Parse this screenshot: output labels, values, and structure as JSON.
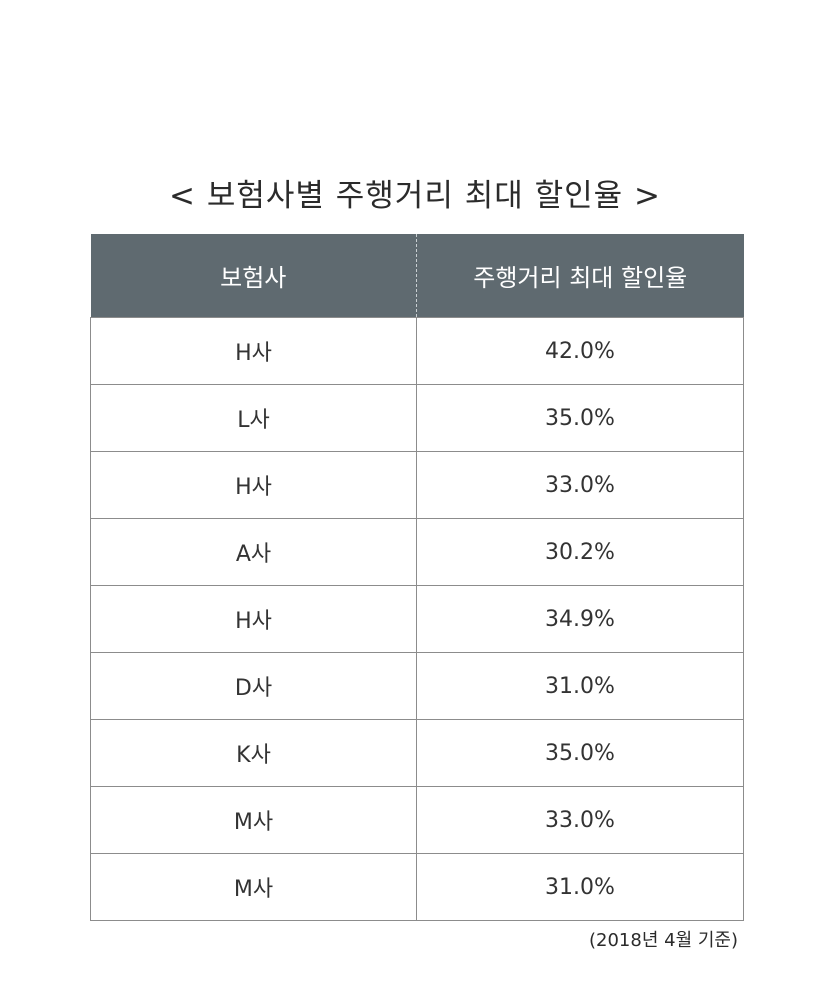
{
  "title": "< 보험사별 주행거리 최대 할인율 >",
  "table": {
    "headers": [
      "보험사",
      "주행거리 최대 할인율"
    ],
    "rows": [
      {
        "company": "H사",
        "rate": "42.0%"
      },
      {
        "company": "L사",
        "rate": "35.0%"
      },
      {
        "company": "H사",
        "rate": "33.0%"
      },
      {
        "company": "A사",
        "rate": "30.2%"
      },
      {
        "company": "H사",
        "rate": "34.9%"
      },
      {
        "company": "D사",
        "rate": "31.0%"
      },
      {
        "company": "K사",
        "rate": "35.0%"
      },
      {
        "company": "M사",
        "rate": "33.0%"
      },
      {
        "company": "M사",
        "rate": "31.0%"
      }
    ]
  },
  "note": "(2018년 4월 기준)",
  "colors": {
    "header_background": "#5f6a70",
    "header_text": "#ffffff",
    "border": "#8c8c8c"
  }
}
